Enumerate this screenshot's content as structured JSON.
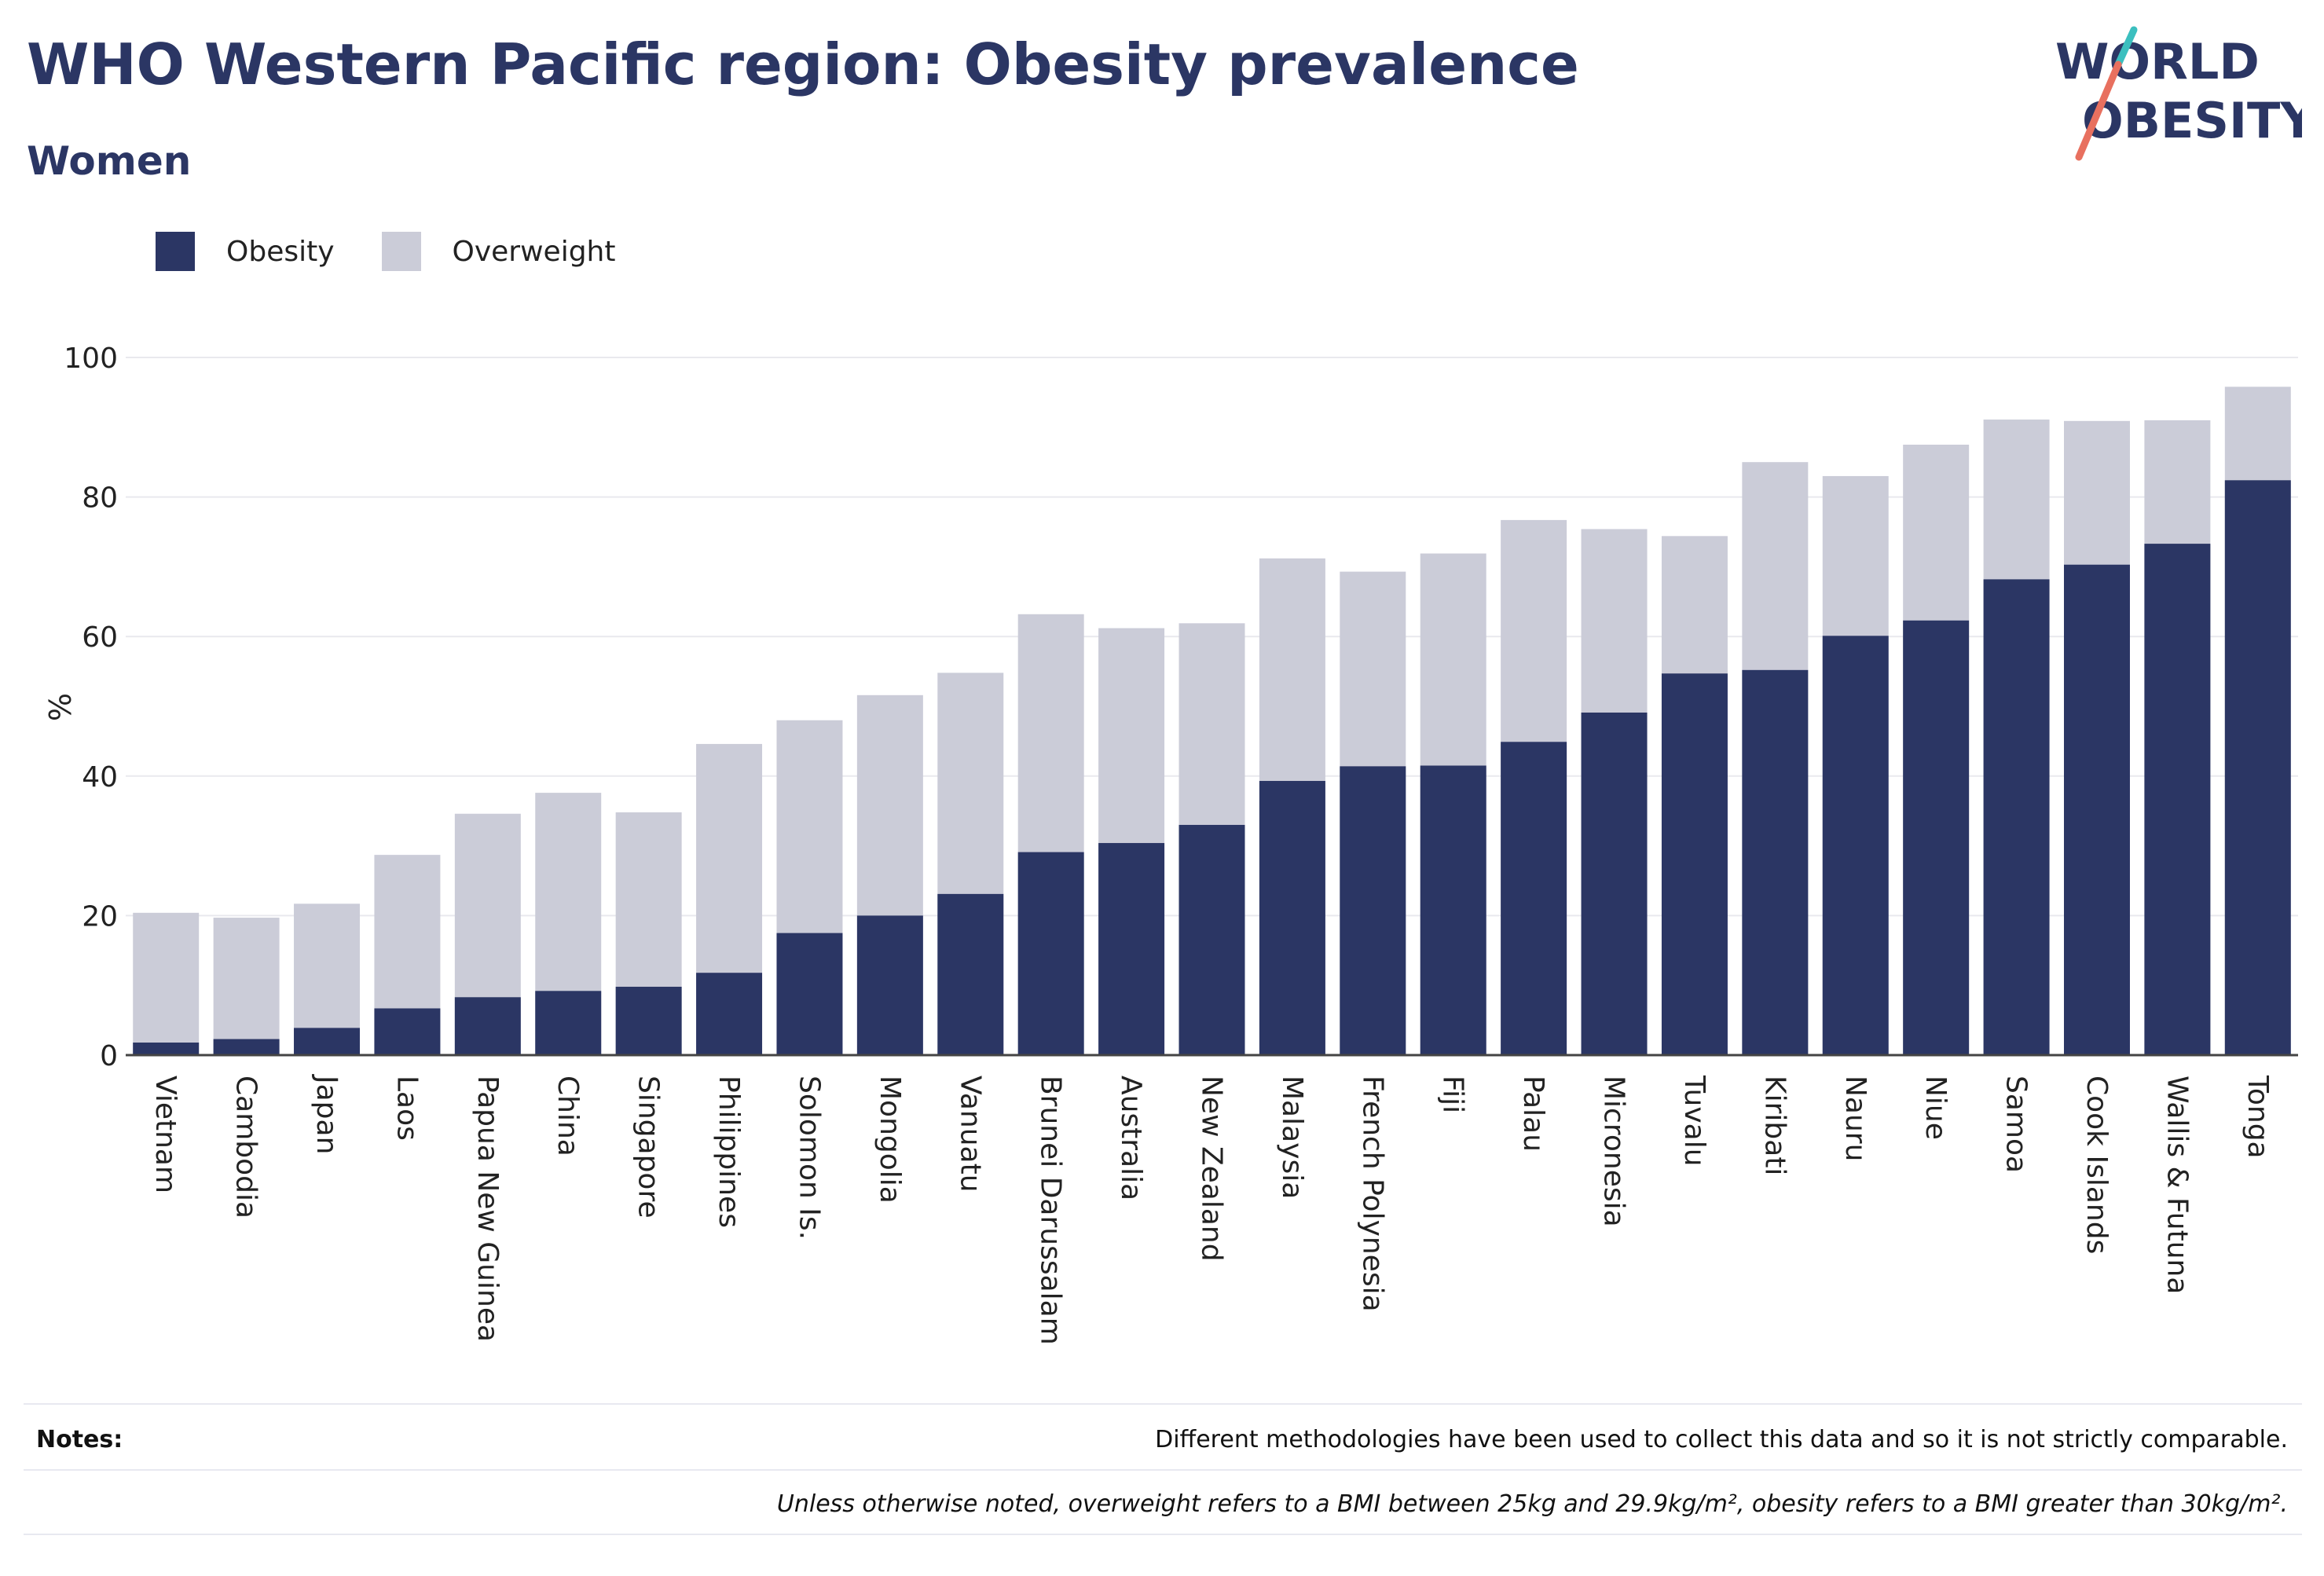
{
  "header": {
    "title": "WHO Western Pacific region: Obesity prevalence",
    "subtitle": "Women"
  },
  "logo": {
    "line1": "WORLD",
    "line2": "OBESITY"
  },
  "colors": {
    "obesity": "#2b3664",
    "overweight": "#cbccd8",
    "accent_teal": "#3bbfbf",
    "accent_coral": "#e8705f",
    "text": "#2b3664"
  },
  "notes": {
    "label": "Notes:",
    "text": "Different methodologies have been used to collect this data and so it is not strictly comparable.",
    "footnote": "Unless otherwise noted, overweight refers to a BMI between 25kg and 29.9kg/m², obesity refers to a BMI greater than 30kg/m²."
  },
  "chart_data": {
    "type": "bar",
    "stacked": false,
    "title": "WHO Western Pacific region: Obesity prevalence",
    "subtitle": "Women",
    "ylabel": "%",
    "xlabel": "",
    "ylim": [
      0,
      100
    ],
    "yticks": [
      0,
      20,
      40,
      60,
      80,
      100
    ],
    "grid": true,
    "legend_position": "top-left",
    "categories": [
      "Vietnam",
      "Cambodia",
      "Japan",
      "Laos",
      "Papua New Guinea",
      "China",
      "Singapore",
      "Philippines",
      "Solomon Is.",
      "Mongolia",
      "Vanuatu",
      "Brunei Darussalam",
      "Australia",
      "New Zealand",
      "Malaysia",
      "French Polynesia",
      "Fiji",
      "Palau",
      "Micronesia",
      "Tuvalu",
      "Kiribati",
      "Nauru",
      "Niue",
      "Samoa",
      "Cook Islands",
      "Wallis & Futuna",
      "Tonga"
    ],
    "series": [
      {
        "name": "Obesity",
        "values": [
          1.8,
          2.3,
          3.9,
          6.7,
          8.3,
          9.2,
          9.8,
          11.8,
          17.5,
          20.0,
          23.1,
          29.1,
          30.4,
          33.0,
          39.3,
          41.4,
          41.5,
          44.9,
          49.1,
          54.7,
          55.2,
          60.1,
          62.3,
          68.2,
          70.3,
          73.3,
          82.4
        ]
      },
      {
        "name": "Overweight",
        "values": [
          20.4,
          19.7,
          21.7,
          28.7,
          34.6,
          37.6,
          34.8,
          44.6,
          48.0,
          51.6,
          54.8,
          63.2,
          61.2,
          61.9,
          71.2,
          69.3,
          71.9,
          76.7,
          75.4,
          74.4,
          85.0,
          83.0,
          87.5,
          91.1,
          90.9,
          91.0,
          95.8
        ]
      }
    ]
  }
}
